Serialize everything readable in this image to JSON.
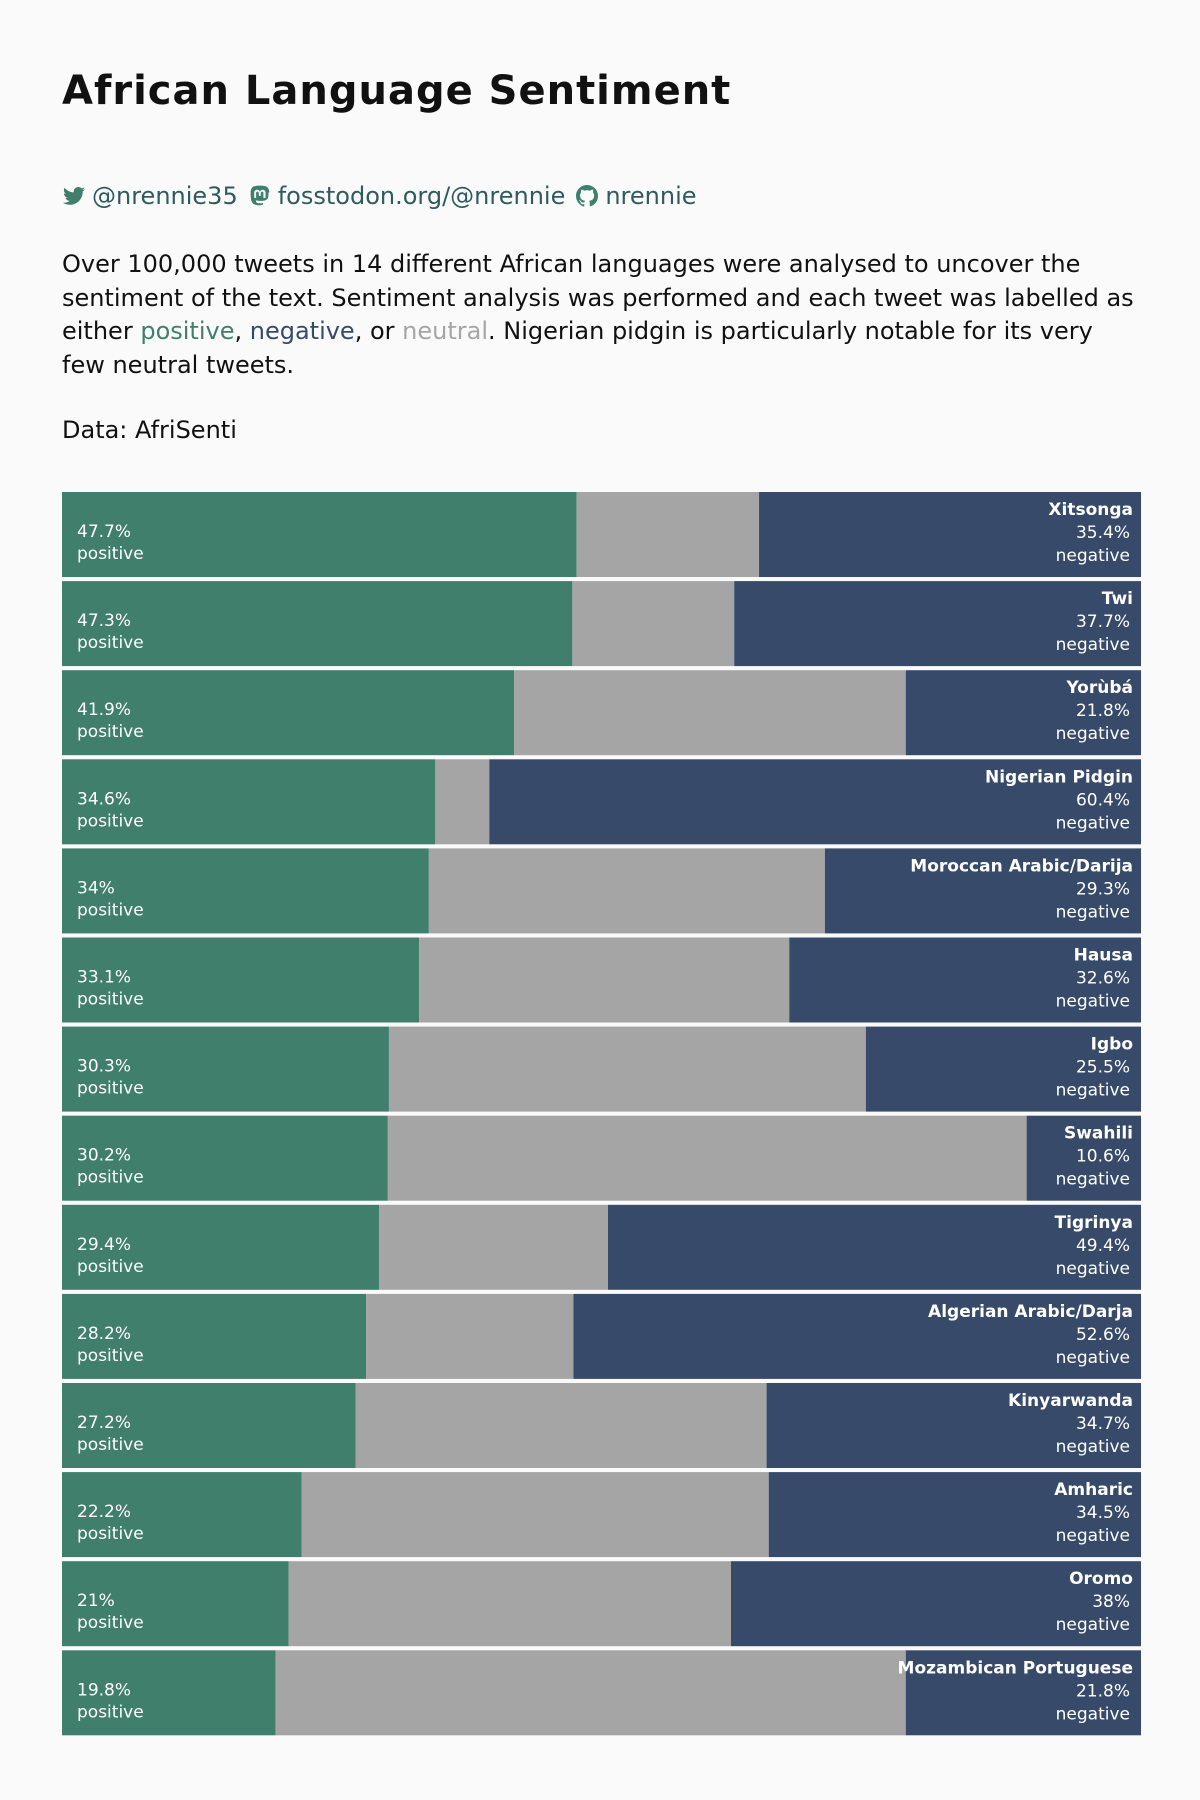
{
  "header": {
    "title": "African Language Sentiment",
    "twitter_handle": "@nrennie35",
    "mastodon_handle": "fosstodon.org/@nrennie",
    "github_handle": "nrennie",
    "twitter_icon": "twitter-icon",
    "mastodon_icon": "mastodon-icon",
    "github_icon": "github-icon"
  },
  "description": {
    "part1": "Over 100,000 tweets in 14 different African languages were analysed to uncover the sentiment of the text. Sentiment analysis was performed and each tweet was labelled as either ",
    "positive_word": "positive",
    "sep1": ", ",
    "negative_word": "negative",
    "sep2": ", or ",
    "neutral_word": "neutral",
    "part2": ". Nigerian pidgin is particularly notable for its very few neutral tweets."
  },
  "source": "Data: AfriSenti",
  "colors": {
    "positive": "#417f6d",
    "neutral": "#a5a5a5",
    "negative": "#374a69",
    "background": "#fafafa",
    "social_text": "#2f5b60"
  },
  "chart_data": {
    "type": "bar",
    "orientation": "horizontal-stacked-100",
    "segment_order": [
      "positive",
      "neutral",
      "negative"
    ],
    "positive_label": "positive",
    "negative_label": "negative",
    "percent_suffix": "%",
    "rows": [
      {
        "language": "Xitsonga",
        "positive": 47.7,
        "negative": 35.4
      },
      {
        "language": "Twi",
        "positive": 47.3,
        "negative": 37.7
      },
      {
        "language": "Yorùbá",
        "positive": 41.9,
        "negative": 21.8
      },
      {
        "language": "Nigerian Pidgin",
        "positive": 34.6,
        "negative": 60.4
      },
      {
        "language": "Moroccan Arabic/Darija",
        "positive": 34,
        "negative": 29.3
      },
      {
        "language": "Hausa",
        "positive": 33.1,
        "negative": 32.6
      },
      {
        "language": "Igbo",
        "positive": 30.3,
        "negative": 25.5
      },
      {
        "language": "Swahili",
        "positive": 30.2,
        "negative": 10.6
      },
      {
        "language": "Tigrinya",
        "positive": 29.4,
        "negative": 49.4
      },
      {
        "language": "Algerian Arabic/Darja",
        "positive": 28.2,
        "negative": 52.6
      },
      {
        "language": "Kinyarwanda",
        "positive": 27.2,
        "negative": 34.7
      },
      {
        "language": "Amharic",
        "positive": 22.2,
        "negative": 34.5
      },
      {
        "language": "Oromo",
        "positive": 21,
        "negative": 38
      },
      {
        "language": "Mozambican Portuguese",
        "positive": 19.8,
        "negative": 21.8
      }
    ]
  }
}
